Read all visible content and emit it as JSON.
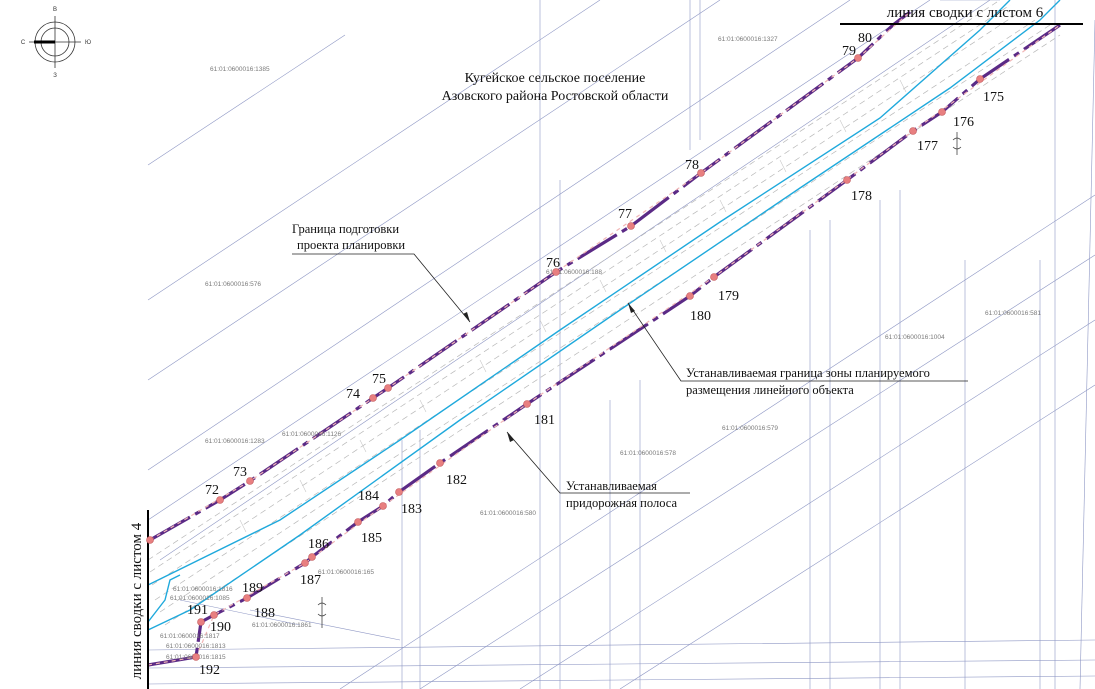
{
  "settlement": {
    "line1": "Кугейское сельское поселение",
    "line2": "Азовского района Ростовской области"
  },
  "sheet_joins": {
    "top": "линия сводки с листом 6",
    "left": "линия сводки с листом 4"
  },
  "callouts": {
    "planning_boundary": {
      "line1": "Граница  подготовки",
      "line2": "проекта планировки"
    },
    "zone_boundary": {
      "line1": "Устанавливаемая граница зоны планируемого",
      "line2": "размещения линейного объекта"
    },
    "roadside_strip": {
      "line1": "Устанавливаемая",
      "line2": "придорожная полоса"
    }
  },
  "compass": {
    "n": "В",
    "s": "З",
    "w": "С",
    "e": "Ю"
  },
  "colors": {
    "boundary": "#5b2a86",
    "road": "#1fa9dc",
    "point": "#e87f80",
    "parcel": "#8e97c4",
    "frame": "#000000"
  },
  "cadastral_labels": [
    "61:01:0600016:1385",
    "61:01:0600016:1327",
    "61:01:0600016:188",
    "61:01:0600016:576",
    "61:01:0600016:1004",
    "61:01:0600016:581",
    "61:01:0600016:1283",
    "61:01:0600016:1126",
    "61:01:0600016:578",
    "61:01:0600016:579",
    "61:01:0600016:580",
    "61:01:0600016:165",
    "61:01:0600016:1816",
    "61:01:0600016:1085",
    "61:01:0600016:1861",
    "61:01:0600016:1817",
    "61:01:0600016:1813",
    "61:01:0600016:1815"
  ],
  "points": [
    "72",
    "73",
    "74",
    "75",
    "76",
    "77",
    "78",
    "79",
    "80",
    "175",
    "176",
    "177",
    "178",
    "179",
    "180",
    "181",
    "182",
    "183",
    "184",
    "185",
    "186",
    "187",
    "188",
    "189",
    "190",
    "191",
    "192"
  ]
}
